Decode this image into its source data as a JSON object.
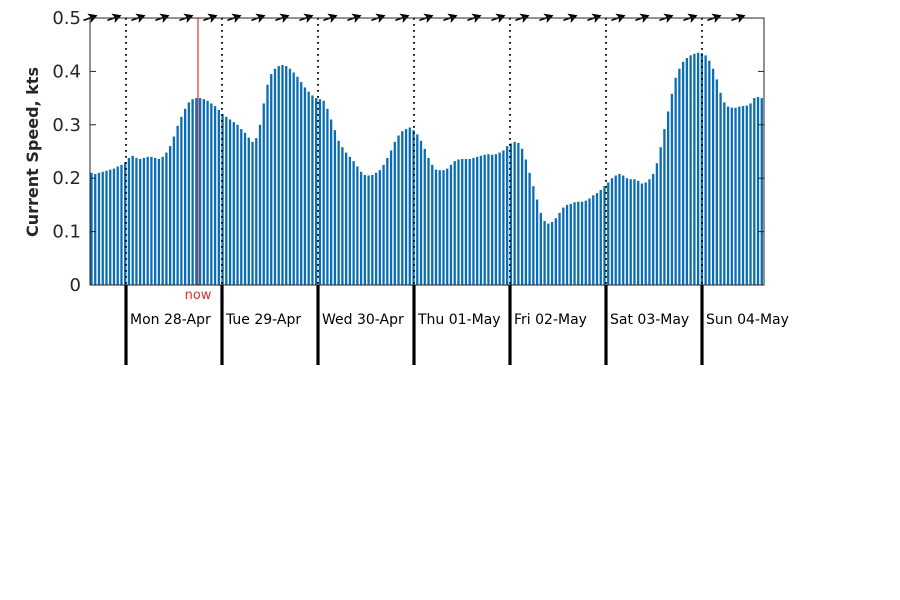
{
  "chart_data": {
    "type": "bar",
    "ylabel": "Current Speed, kts",
    "ylim": [
      0,
      0.5
    ],
    "yticks": [
      0,
      0.1,
      0.2,
      0.3,
      0.4,
      0.5
    ],
    "ytick_labels": [
      "0",
      "0.1",
      "0.2",
      "0.3",
      "0.4",
      "0.5"
    ],
    "bar_color": "#0b6eb5",
    "now_color": "#e03030",
    "now_label": "now",
    "now_value": 0.75,
    "x_range": [
      -0.375,
      6.6458
    ],
    "series": [
      {
        "values": [
          0.21,
          0.208,
          0.21,
          0.212,
          0.214,
          0.216,
          0.218,
          0.222,
          0.225,
          0.23,
          0.238,
          0.242,
          0.238,
          0.236,
          0.238,
          0.24,
          0.24,
          0.238,
          0.236,
          0.24,
          0.248,
          0.26,
          0.278,
          0.298,
          0.315,
          0.33,
          0.342,
          0.348,
          0.35,
          0.35,
          0.348,
          0.345,
          0.34,
          0.335,
          0.328,
          0.32,
          0.315,
          0.31,
          0.305,
          0.3,
          0.292,
          0.285,
          0.276,
          0.268,
          0.275,
          0.3,
          0.34,
          0.375,
          0.395,
          0.405,
          0.41,
          0.412,
          0.41,
          0.405,
          0.398,
          0.39,
          0.38,
          0.37,
          0.362,
          0.355,
          0.35,
          0.348,
          0.345,
          0.33,
          0.31,
          0.29,
          0.27,
          0.258,
          0.248,
          0.24,
          0.232,
          0.222,
          0.212,
          0.206,
          0.205,
          0.206,
          0.21,
          0.215,
          0.225,
          0.238,
          0.252,
          0.268,
          0.28,
          0.288,
          0.292,
          0.295,
          0.29,
          0.282,
          0.27,
          0.255,
          0.238,
          0.225,
          0.216,
          0.215,
          0.215,
          0.218,
          0.225,
          0.232,
          0.235,
          0.236,
          0.236,
          0.236,
          0.238,
          0.24,
          0.242,
          0.244,
          0.245,
          0.244,
          0.245,
          0.248,
          0.252,
          0.26,
          0.265,
          0.268,
          0.266,
          0.255,
          0.235,
          0.21,
          0.185,
          0.16,
          0.135,
          0.12,
          0.115,
          0.118,
          0.125,
          0.135,
          0.145,
          0.15,
          0.152,
          0.155,
          0.156,
          0.156,
          0.158,
          0.162,
          0.168,
          0.172,
          0.178,
          0.185,
          0.192,
          0.2,
          0.205,
          0.208,
          0.205,
          0.2,
          0.198,
          0.198,
          0.195,
          0.19,
          0.192,
          0.198,
          0.208,
          0.228,
          0.258,
          0.292,
          0.325,
          0.358,
          0.388,
          0.405,
          0.418,
          0.425,
          0.43,
          0.433,
          0.435,
          0.434,
          0.43,
          0.42,
          0.405,
          0.385,
          0.36,
          0.342,
          0.334,
          0.332,
          0.332,
          0.334,
          0.335,
          0.336,
          0.34,
          0.35,
          0.352,
          0.35
        ]
      }
    ],
    "day_labels": [
      "Mon 28-Apr",
      "Tue 29-Apr",
      "Wed 30-Apr",
      "Thu 01-May",
      "Fri 02-May",
      "Sat 03-May",
      "Sun 04-May"
    ],
    "day_boundaries": [
      0,
      1,
      2,
      3,
      4,
      5,
      6
    ],
    "direction_arrows": {
      "count": 28,
      "start": -0.375,
      "spacing": 0.25,
      "heading_deg": 20
    },
    "grid": false
  }
}
